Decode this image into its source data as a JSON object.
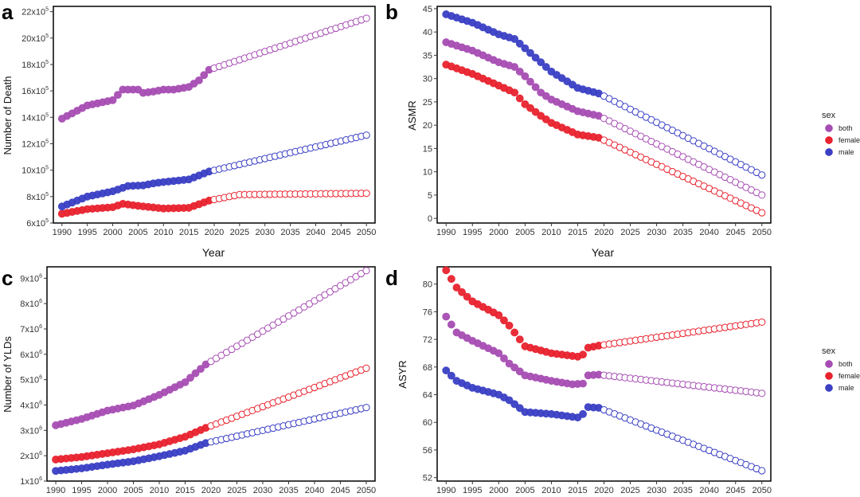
{
  "colors": {
    "both": "#a64db3",
    "female": "#e8222e",
    "male": "#3a3fc4"
  },
  "legend": {
    "title": "sex",
    "entries": [
      {
        "key": "both",
        "label": "both"
      },
      {
        "key": "female",
        "label": "female"
      },
      {
        "key": "male",
        "label": "male"
      }
    ]
  },
  "chart_data": [
    {
      "id": "a",
      "type": "scatter",
      "panel_label": "a",
      "xlabel": "Year",
      "ylabel": "Number of Death",
      "xlim": [
        1988.3,
        2051.7
      ],
      "ylim": [
        600000,
        2240000
      ],
      "xticks": [
        1990,
        1995,
        2000,
        2005,
        2010,
        2015,
        2020,
        2025,
        2030,
        2035,
        2040,
        2045,
        2050
      ],
      "yticks": [
        {
          "value": 600000,
          "base": "6x10",
          "exp": "5"
        },
        {
          "value": 800000,
          "base": "8x10",
          "exp": "5"
        },
        {
          "value": 1000000,
          "base": "10x10",
          "exp": "5"
        },
        {
          "value": 1200000,
          "base": "12x10",
          "exp": "5"
        },
        {
          "value": 1400000,
          "base": "14x10",
          "exp": "5"
        },
        {
          "value": 1600000,
          "base": "16x10",
          "exp": "5"
        },
        {
          "value": 1800000,
          "base": "18x10",
          "exp": "5"
        },
        {
          "value": 2000000,
          "base": "20x10",
          "exp": "5"
        },
        {
          "value": 2200000,
          "base": "22x10",
          "exp": "5"
        }
      ],
      "observed_end": 2019,
      "series": [
        {
          "key": "both",
          "years": [
            1990,
            1995,
            2000,
            2002,
            2005,
            2006,
            2008,
            2010,
            2012,
            2015,
            2017,
            2019,
            2050
          ],
          "values": [
            1390000,
            1490000,
            1530000,
            1610000,
            1610000,
            1585000,
            1595000,
            1610000,
            1610000,
            1630000,
            1680000,
            1760000,
            2150000
          ]
        },
        {
          "key": "female",
          "years": [
            1990,
            1995,
            2000,
            2002,
            2005,
            2010,
            2015,
            2019,
            2025,
            2050
          ],
          "values": [
            670000,
            705000,
            720000,
            745000,
            730000,
            710000,
            715000,
            770000,
            815000,
            825000
          ]
        },
        {
          "key": "male",
          "years": [
            1990,
            1995,
            2000,
            2003,
            2006,
            2008,
            2010,
            2015,
            2019,
            2050
          ],
          "values": [
            725000,
            800000,
            840000,
            880000,
            885000,
            900000,
            910000,
            930000,
            990000,
            1265000
          ]
        }
      ]
    },
    {
      "id": "b",
      "type": "scatter",
      "panel_label": "b",
      "xlabel": "Year",
      "ylabel": "ASMR",
      "xlim": [
        1988.3,
        2051.7
      ],
      "ylim": [
        -1,
        45.5
      ],
      "xticks": [
        1990,
        1995,
        2000,
        2005,
        2010,
        2015,
        2020,
        2025,
        2030,
        2035,
        2040,
        2045,
        2050
      ],
      "yticks": [
        {
          "value": 0,
          "base": "0"
        },
        {
          "value": 5,
          "base": "5"
        },
        {
          "value": 10,
          "base": "10"
        },
        {
          "value": 15,
          "base": "15"
        },
        {
          "value": 20,
          "base": "20"
        },
        {
          "value": 25,
          "base": "25"
        },
        {
          "value": 30,
          "base": "30"
        },
        {
          "value": 35,
          "base": "35"
        },
        {
          "value": 40,
          "base": "40"
        },
        {
          "value": 45,
          "base": "45"
        }
      ],
      "observed_end": 2019,
      "series": [
        {
          "key": "both",
          "years": [
            1990,
            1995,
            2000,
            2003,
            2005,
            2008,
            2010,
            2015,
            2019,
            2050
          ],
          "values": [
            37.8,
            36.0,
            33.5,
            32.5,
            30.5,
            27.0,
            25.5,
            23.0,
            22.0,
            5.0
          ]
        },
        {
          "key": "female",
          "years": [
            1990,
            1995,
            2000,
            2003,
            2005,
            2008,
            2010,
            2015,
            2019,
            2050
          ],
          "values": [
            33.0,
            31.0,
            28.5,
            27.0,
            24.5,
            22.0,
            20.5,
            18.0,
            17.3,
            1.2
          ]
        },
        {
          "key": "male",
          "years": [
            1990,
            1995,
            2000,
            2003,
            2005,
            2008,
            2010,
            2015,
            2019,
            2050
          ],
          "values": [
            43.8,
            42.0,
            39.5,
            38.5,
            36.5,
            33.5,
            31.5,
            28.0,
            26.8,
            9.3
          ]
        }
      ]
    },
    {
      "id": "c",
      "type": "scatter",
      "panel_label": "c",
      "xlabel": "",
      "ylabel": "Number of YLDs",
      "xlim": [
        1988.3,
        2051.7
      ],
      "ylim": [
        1000000,
        9450000
      ],
      "xticks": [
        1990,
        1995,
        2000,
        2005,
        2010,
        2015,
        2020,
        2025,
        2030,
        2035,
        2040,
        2045,
        2050
      ],
      "yticks": [
        {
          "value": 1000000,
          "base": "1x10",
          "exp": "6"
        },
        {
          "value": 2000000,
          "base": "2x10",
          "exp": "6"
        },
        {
          "value": 3000000,
          "base": "3x10",
          "exp": "6"
        },
        {
          "value": 4000000,
          "base": "4x10",
          "exp": "6"
        },
        {
          "value": 5000000,
          "base": "5x10",
          "exp": "6"
        },
        {
          "value": 6000000,
          "base": "6x10",
          "exp": "6"
        },
        {
          "value": 7000000,
          "base": "7x10",
          "exp": "6"
        },
        {
          "value": 8000000,
          "base": "8x10",
          "exp": "6"
        },
        {
          "value": 9000000,
          "base": "9x10",
          "exp": "6"
        }
      ],
      "observed_end": 2019,
      "series": [
        {
          "key": "both",
          "years": [
            1990,
            1995,
            2000,
            2005,
            2010,
            2015,
            2019,
            2050
          ],
          "values": [
            3200000,
            3450000,
            3780000,
            3980000,
            4400000,
            4900000,
            5600000,
            9300000
          ]
        },
        {
          "key": "female",
          "years": [
            1990,
            1995,
            2000,
            2005,
            2010,
            2015,
            2019,
            2050
          ],
          "values": [
            1850000,
            1950000,
            2100000,
            2250000,
            2450000,
            2750000,
            3100000,
            5450000
          ]
        },
        {
          "key": "male",
          "years": [
            1990,
            1995,
            2000,
            2005,
            2010,
            2015,
            2019,
            2050
          ],
          "values": [
            1400000,
            1500000,
            1650000,
            1780000,
            1980000,
            2200000,
            2500000,
            3900000
          ]
        }
      ]
    },
    {
      "id": "d",
      "type": "scatter",
      "panel_label": "d",
      "xlabel": "",
      "ylabel": "ASYR",
      "xlim": [
        1988.3,
        2051.7
      ],
      "ylim": [
        51.5,
        82.5
      ],
      "xticks": [
        1990,
        1995,
        2000,
        2005,
        2010,
        2015,
        2020,
        2025,
        2030,
        2035,
        2040,
        2045,
        2050
      ],
      "yticks": [
        {
          "value": 52,
          "base": "52"
        },
        {
          "value": 56,
          "base": "56"
        },
        {
          "value": 60,
          "base": "60"
        },
        {
          "value": 64,
          "base": "64"
        },
        {
          "value": 68,
          "base": "68"
        },
        {
          "value": 72,
          "base": "72"
        },
        {
          "value": 76,
          "base": "76"
        },
        {
          "value": 80,
          "base": "80"
        }
      ],
      "observed_end": 2019,
      "series": [
        {
          "key": "both",
          "years": [
            1990,
            1992,
            1995,
            2000,
            2002,
            2005,
            2010,
            2014,
            2016,
            2017,
            2019,
            2050
          ],
          "values": [
            75.3,
            73.0,
            71.8,
            70.0,
            68.5,
            66.8,
            66.0,
            65.5,
            65.6,
            66.8,
            66.9,
            64.2
          ]
        },
        {
          "key": "female",
          "years": [
            1990,
            1992,
            1995,
            2000,
            2002,
            2005,
            2010,
            2015,
            2016,
            2017,
            2019,
            2050
          ],
          "values": [
            82.0,
            79.5,
            77.5,
            75.5,
            74.0,
            71.0,
            70.0,
            69.5,
            69.8,
            70.8,
            71.1,
            74.5
          ]
        },
        {
          "key": "male",
          "years": [
            1990,
            1992,
            1995,
            2000,
            2002,
            2005,
            2010,
            2015,
            2016,
            2017,
            2019,
            2050
          ],
          "values": [
            67.5,
            66.0,
            65.0,
            64.0,
            63.2,
            61.5,
            61.2,
            60.7,
            61.2,
            62.2,
            62.1,
            53.0
          ]
        }
      ]
    }
  ]
}
